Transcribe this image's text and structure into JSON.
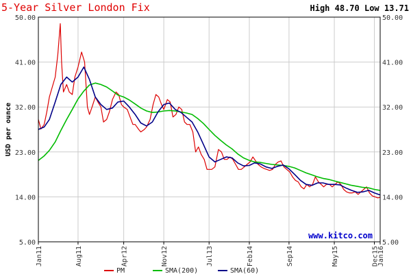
{
  "chart_data": {
    "type": "line",
    "title": "5-Year Silver London Fix",
    "high_low": "High 48.70 Low 13.71",
    "ylabel": "USD per ounce",
    "ylim": [
      5,
      50
    ],
    "yticks": [
      "5.00",
      "14.00",
      "23.00",
      "32.00",
      "41.00",
      "50.00"
    ],
    "ytick_values": [
      5,
      14,
      23,
      32,
      41,
      50
    ],
    "xlim": [
      "2011-01-01",
      "2016-01-01"
    ],
    "xticks": [
      {
        "label": "Jan11",
        "date": "2011-01-01"
      },
      {
        "label": "Aug11",
        "date": "2011-08-01"
      },
      {
        "label": "Apr12",
        "date": "2012-04-01"
      },
      {
        "label": "Nov12",
        "date": "2012-11-01"
      },
      {
        "label": "Jul13",
        "date": "2013-07-01"
      },
      {
        "label": "Feb14",
        "date": "2014-02-01"
      },
      {
        "label": "Sep14",
        "date": "2014-09-01"
      },
      {
        "label": "May15",
        "date": "2015-05-01"
      },
      {
        "label": "Dec15",
        "date": "2015-12-01"
      },
      {
        "label": "Jan16",
        "date": "2016-01-01"
      }
    ],
    "grid": true,
    "legend_position": "bottom",
    "watermark": "www.kitco.com",
    "series": [
      {
        "name": "PM",
        "color": "#dd0000",
        "points": [
          [
            "2011-01-01",
            29.5
          ],
          [
            "2011-01-15",
            27.6
          ],
          [
            "2011-02-01",
            28.5
          ],
          [
            "2011-02-15",
            31.0
          ],
          [
            "2011-03-01",
            34.0
          ],
          [
            "2011-03-15",
            35.8
          ],
          [
            "2011-04-01",
            38.0
          ],
          [
            "2011-04-15",
            42.5
          ],
          [
            "2011-04-28",
            48.7
          ],
          [
            "2011-05-05",
            41.0
          ],
          [
            "2011-05-15",
            35.0
          ],
          [
            "2011-06-01",
            36.5
          ],
          [
            "2011-06-15",
            35.0
          ],
          [
            "2011-07-01",
            34.5
          ],
          [
            "2011-07-15",
            38.0
          ],
          [
            "2011-08-01",
            40.0
          ],
          [
            "2011-08-20",
            43.0
          ],
          [
            "2011-09-05",
            41.0
          ],
          [
            "2011-09-20",
            32.0
          ],
          [
            "2011-10-01",
            30.5
          ],
          [
            "2011-10-15",
            32.0
          ],
          [
            "2011-11-01",
            34.0
          ],
          [
            "2011-11-15",
            33.0
          ],
          [
            "2011-12-01",
            32.0
          ],
          [
            "2011-12-15",
            29.0
          ],
          [
            "2012-01-01",
            29.5
          ],
          [
            "2012-01-15",
            31.0
          ],
          [
            "2012-02-01",
            33.5
          ],
          [
            "2012-02-20",
            35.0
          ],
          [
            "2012-03-05",
            34.5
          ],
          [
            "2012-03-20",
            32.5
          ],
          [
            "2012-04-01",
            32.0
          ],
          [
            "2012-04-20",
            31.5
          ],
          [
            "2012-05-05",
            30.0
          ],
          [
            "2012-05-20",
            28.5
          ],
          [
            "2012-06-01",
            28.5
          ],
          [
            "2012-06-20",
            27.5
          ],
          [
            "2012-07-01",
            27.0
          ],
          [
            "2012-07-20",
            27.5
          ],
          [
            "2012-08-01",
            28.0
          ],
          [
            "2012-08-20",
            29.5
          ],
          [
            "2012-09-05",
            32.5
          ],
          [
            "2012-09-20",
            34.5
          ],
          [
            "2012-10-05",
            34.0
          ],
          [
            "2012-10-20",
            32.5
          ],
          [
            "2012-11-01",
            31.5
          ],
          [
            "2012-11-20",
            33.5
          ],
          [
            "2012-12-05",
            33.0
          ],
          [
            "2012-12-20",
            30.0
          ],
          [
            "2013-01-05",
            30.5
          ],
          [
            "2013-01-20",
            32.0
          ],
          [
            "2013-02-05",
            31.5
          ],
          [
            "2013-02-20",
            29.0
          ],
          [
            "2013-03-05",
            28.5
          ],
          [
            "2013-03-20",
            28.5
          ],
          [
            "2013-04-05",
            27.0
          ],
          [
            "2013-04-20",
            23.0
          ],
          [
            "2013-05-05",
            24.0
          ],
          [
            "2013-05-20",
            22.5
          ],
          [
            "2013-06-05",
            21.5
          ],
          [
            "2013-06-20",
            19.5
          ],
          [
            "2013-07-01",
            19.5
          ],
          [
            "2013-07-15",
            19.5
          ],
          [
            "2013-08-01",
            20.0
          ],
          [
            "2013-08-20",
            23.5
          ],
          [
            "2013-09-05",
            23.0
          ],
          [
            "2013-09-20",
            21.5
          ],
          [
            "2013-10-05",
            21.5
          ],
          [
            "2013-10-20",
            22.0
          ],
          [
            "2013-11-05",
            21.5
          ],
          [
            "2013-11-20",
            20.5
          ],
          [
            "2013-12-05",
            19.5
          ],
          [
            "2013-12-20",
            19.5
          ],
          [
            "2014-01-05",
            20.0
          ],
          [
            "2014-01-20",
            20.5
          ],
          [
            "2014-02-05",
            21.0
          ],
          [
            "2014-02-20",
            22.0
          ],
          [
            "2014-03-05",
            21.3
          ],
          [
            "2014-03-20",
            20.5
          ],
          [
            "2014-04-05",
            20.0
          ],
          [
            "2014-04-20",
            19.7
          ],
          [
            "2014-05-05",
            19.5
          ],
          [
            "2014-05-20",
            19.3
          ],
          [
            "2014-06-05",
            19.5
          ],
          [
            "2014-06-20",
            20.5
          ],
          [
            "2014-07-05",
            21.0
          ],
          [
            "2014-07-20",
            21.2
          ],
          [
            "2014-08-05",
            20.0
          ],
          [
            "2014-08-20",
            19.5
          ],
          [
            "2014-09-05",
            19.0
          ],
          [
            "2014-09-20",
            18.0
          ],
          [
            "2014-10-05",
            17.3
          ],
          [
            "2014-10-20",
            17.0
          ],
          [
            "2014-11-05",
            16.0
          ],
          [
            "2014-11-20",
            15.6
          ],
          [
            "2014-12-05",
            16.5
          ],
          [
            "2014-12-20",
            16.0
          ],
          [
            "2015-01-05",
            16.5
          ],
          [
            "2015-01-20",
            18.0
          ],
          [
            "2015-02-05",
            17.0
          ],
          [
            "2015-02-20",
            16.5
          ],
          [
            "2015-03-05",
            16.0
          ],
          [
            "2015-03-20",
            16.5
          ],
          [
            "2015-04-05",
            16.5
          ],
          [
            "2015-04-20",
            16.0
          ],
          [
            "2015-05-05",
            16.5
          ],
          [
            "2015-05-20",
            17.0
          ],
          [
            "2015-06-05",
            16.5
          ],
          [
            "2015-06-20",
            15.5
          ],
          [
            "2015-07-05",
            15.0
          ],
          [
            "2015-07-20",
            14.8
          ],
          [
            "2015-08-05",
            14.8
          ],
          [
            "2015-08-20",
            15.0
          ],
          [
            "2015-09-05",
            14.5
          ],
          [
            "2015-09-20",
            15.0
          ],
          [
            "2015-10-05",
            15.5
          ],
          [
            "2015-10-20",
            16.0
          ],
          [
            "2015-11-05",
            14.8
          ],
          [
            "2015-11-20",
            14.2
          ],
          [
            "2015-12-05",
            14.0
          ],
          [
            "2015-12-20",
            13.8
          ],
          [
            "2015-12-31",
            13.9
          ]
        ]
      },
      {
        "name": "SMA(200)",
        "color": "#00bb00",
        "points": [
          [
            "2011-01-01",
            21.3
          ],
          [
            "2011-02-01",
            22.2
          ],
          [
            "2011-03-01",
            23.3
          ],
          [
            "2011-04-01",
            25.0
          ],
          [
            "2011-05-01",
            27.3
          ],
          [
            "2011-06-01",
            29.5
          ],
          [
            "2011-07-01",
            31.5
          ],
          [
            "2011-08-01",
            33.6
          ],
          [
            "2011-09-01",
            35.2
          ],
          [
            "2011-10-01",
            36.4
          ],
          [
            "2011-11-01",
            36.8
          ],
          [
            "2011-12-01",
            36.5
          ],
          [
            "2012-01-01",
            36.0
          ],
          [
            "2012-02-01",
            35.2
          ],
          [
            "2012-03-01",
            34.4
          ],
          [
            "2012-04-01",
            34.0
          ],
          [
            "2012-05-01",
            33.4
          ],
          [
            "2012-06-01",
            32.6
          ],
          [
            "2012-07-01",
            31.8
          ],
          [
            "2012-08-01",
            31.2
          ],
          [
            "2012-09-01",
            30.9
          ],
          [
            "2012-10-01",
            31.0
          ],
          [
            "2012-11-01",
            31.2
          ],
          [
            "2012-12-01",
            31.3
          ],
          [
            "2013-01-01",
            31.2
          ],
          [
            "2013-02-01",
            31.0
          ],
          [
            "2013-03-01",
            30.8
          ],
          [
            "2013-04-01",
            30.5
          ],
          [
            "2013-05-01",
            29.7
          ],
          [
            "2013-06-01",
            28.7
          ],
          [
            "2013-07-01",
            27.5
          ],
          [
            "2013-08-01",
            26.3
          ],
          [
            "2013-09-01",
            25.3
          ],
          [
            "2013-10-01",
            24.4
          ],
          [
            "2013-11-01",
            23.6
          ],
          [
            "2013-12-01",
            22.6
          ],
          [
            "2014-01-01",
            21.8
          ],
          [
            "2014-02-01",
            21.3
          ],
          [
            "2014-03-01",
            21.0
          ],
          [
            "2014-04-01",
            20.9
          ],
          [
            "2014-05-01",
            20.7
          ],
          [
            "2014-06-01",
            20.5
          ],
          [
            "2014-07-01",
            20.4
          ],
          [
            "2014-08-01",
            20.3
          ],
          [
            "2014-09-01",
            20.1
          ],
          [
            "2014-10-01",
            19.8
          ],
          [
            "2014-11-01",
            19.3
          ],
          [
            "2014-12-01",
            18.8
          ],
          [
            "2015-01-01",
            18.4
          ],
          [
            "2015-02-01",
            18.0
          ],
          [
            "2015-03-01",
            17.7
          ],
          [
            "2015-04-01",
            17.5
          ],
          [
            "2015-05-01",
            17.2
          ],
          [
            "2015-06-01",
            16.9
          ],
          [
            "2015-07-01",
            16.6
          ],
          [
            "2015-08-01",
            16.3
          ],
          [
            "2015-09-01",
            16.1
          ],
          [
            "2015-10-01",
            15.9
          ],
          [
            "2015-11-01",
            15.8
          ],
          [
            "2015-12-01",
            15.5
          ],
          [
            "2015-12-31",
            15.3
          ]
        ]
      },
      {
        "name": "SMA(60)",
        "color": "#000088",
        "points": [
          [
            "2011-01-01",
            27.5
          ],
          [
            "2011-02-01",
            28.0
          ],
          [
            "2011-03-01",
            29.5
          ],
          [
            "2011-04-01",
            33.0
          ],
          [
            "2011-05-01",
            36.5
          ],
          [
            "2011-06-01",
            38.0
          ],
          [
            "2011-07-01",
            37.0
          ],
          [
            "2011-08-01",
            38.0
          ],
          [
            "2011-09-01",
            40.0
          ],
          [
            "2011-10-01",
            37.5
          ],
          [
            "2011-11-01",
            34.0
          ],
          [
            "2011-12-01",
            32.5
          ],
          [
            "2012-01-01",
            31.5
          ],
          [
            "2012-02-01",
            31.8
          ],
          [
            "2012-03-01",
            33.0
          ],
          [
            "2012-04-01",
            33.2
          ],
          [
            "2012-05-01",
            32.0
          ],
          [
            "2012-06-01",
            30.5
          ],
          [
            "2012-07-01",
            28.8
          ],
          [
            "2012-08-01",
            28.2
          ],
          [
            "2012-09-01",
            29.0
          ],
          [
            "2012-10-01",
            31.0
          ],
          [
            "2012-11-01",
            32.5
          ],
          [
            "2012-12-01",
            32.8
          ],
          [
            "2013-01-01",
            31.5
          ],
          [
            "2013-02-01",
            30.9
          ],
          [
            "2013-03-01",
            30.0
          ],
          [
            "2013-04-01",
            29.0
          ],
          [
            "2013-05-01",
            27.0
          ],
          [
            "2013-06-01",
            24.5
          ],
          [
            "2013-07-01",
            22.0
          ],
          [
            "2013-08-01",
            21.0
          ],
          [
            "2013-09-01",
            21.5
          ],
          [
            "2013-10-01",
            22.0
          ],
          [
            "2013-11-01",
            21.8
          ],
          [
            "2013-12-01",
            20.8
          ],
          [
            "2014-01-01",
            20.2
          ],
          [
            "2014-02-01",
            20.3
          ],
          [
            "2014-03-01",
            20.8
          ],
          [
            "2014-04-01",
            20.6
          ],
          [
            "2014-05-01",
            20.0
          ],
          [
            "2014-06-01",
            19.7
          ],
          [
            "2014-07-01",
            20.1
          ],
          [
            "2014-08-01",
            20.4
          ],
          [
            "2014-09-01",
            19.6
          ],
          [
            "2014-10-01",
            18.5
          ],
          [
            "2014-11-01",
            17.3
          ],
          [
            "2014-12-01",
            16.5
          ],
          [
            "2015-01-01",
            16.3
          ],
          [
            "2015-02-01",
            16.8
          ],
          [
            "2015-03-01",
            16.8
          ],
          [
            "2015-04-01",
            16.5
          ],
          [
            "2015-05-01",
            16.5
          ],
          [
            "2015-06-01",
            16.4
          ],
          [
            "2015-07-01",
            15.8
          ],
          [
            "2015-08-01",
            15.3
          ],
          [
            "2015-09-01",
            14.9
          ],
          [
            "2015-10-01",
            15.0
          ],
          [
            "2015-11-01",
            15.3
          ],
          [
            "2015-12-01",
            14.8
          ],
          [
            "2015-12-31",
            14.4
          ]
        ]
      }
    ]
  }
}
